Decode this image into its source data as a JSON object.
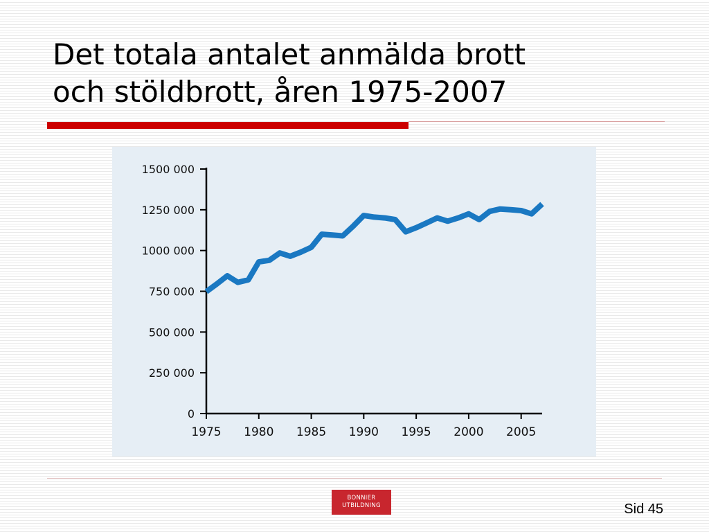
{
  "slide": {
    "title_lines": [
      "Det totala antalet anmälda brott",
      "och stöldbrott, åren 1975-2007"
    ],
    "page_label": "Sid 45",
    "logo_lines": [
      "BONNIER",
      "UTBILDNING"
    ]
  },
  "colors": {
    "accent_red": "#cc0000",
    "thin_rule": "#d9a0a0",
    "footer_rule": "#e6c4c4",
    "chart_bg": "#e6eef5",
    "line": "#1a78c2",
    "logo_bg": "#c8262e"
  },
  "chart_data": {
    "type": "line",
    "title": "",
    "xlabel": "",
    "ylabel": "",
    "xlim": [
      1975,
      2007
    ],
    "ylim": [
      0,
      1500000
    ],
    "x_ticks": [
      1975,
      1980,
      1985,
      1990,
      1995,
      2000,
      2005
    ],
    "x_tick_labels": [
      "1975",
      "1980",
      "1985",
      "1990",
      "1995",
      "2000",
      "2005"
    ],
    "y_ticks": [
      0,
      250000,
      500000,
      750000,
      1000000,
      1250000,
      1500000
    ],
    "y_tick_labels": [
      "0",
      "250 000",
      "500 000",
      "750 000",
      "1000 000",
      "1250 000",
      "1500 000"
    ],
    "grid": false,
    "legend": "none",
    "series": [
      {
        "x": [
          1975,
          1976,
          1977,
          1978,
          1979,
          1980,
          1981,
          1982,
          1983,
          1984,
          1985,
          1986,
          1987,
          1988,
          1989,
          1990,
          1991,
          1992,
          1993,
          1994,
          1995,
          1996,
          1997,
          1998,
          1999,
          2000,
          2001,
          2002,
          2003,
          2004,
          2005,
          2006,
          2007
        ],
        "y": [
          748000,
          795000,
          845000,
          805000,
          820000,
          930000,
          940000,
          985000,
          965000,
          990000,
          1020000,
          1100000,
          1095000,
          1090000,
          1150000,
          1215000,
          1205000,
          1200000,
          1190000,
          1115000,
          1140000,
          1170000,
          1200000,
          1180000,
          1200000,
          1225000,
          1190000,
          1240000,
          1255000,
          1250000,
          1245000,
          1225000,
          1285000
        ]
      }
    ]
  }
}
